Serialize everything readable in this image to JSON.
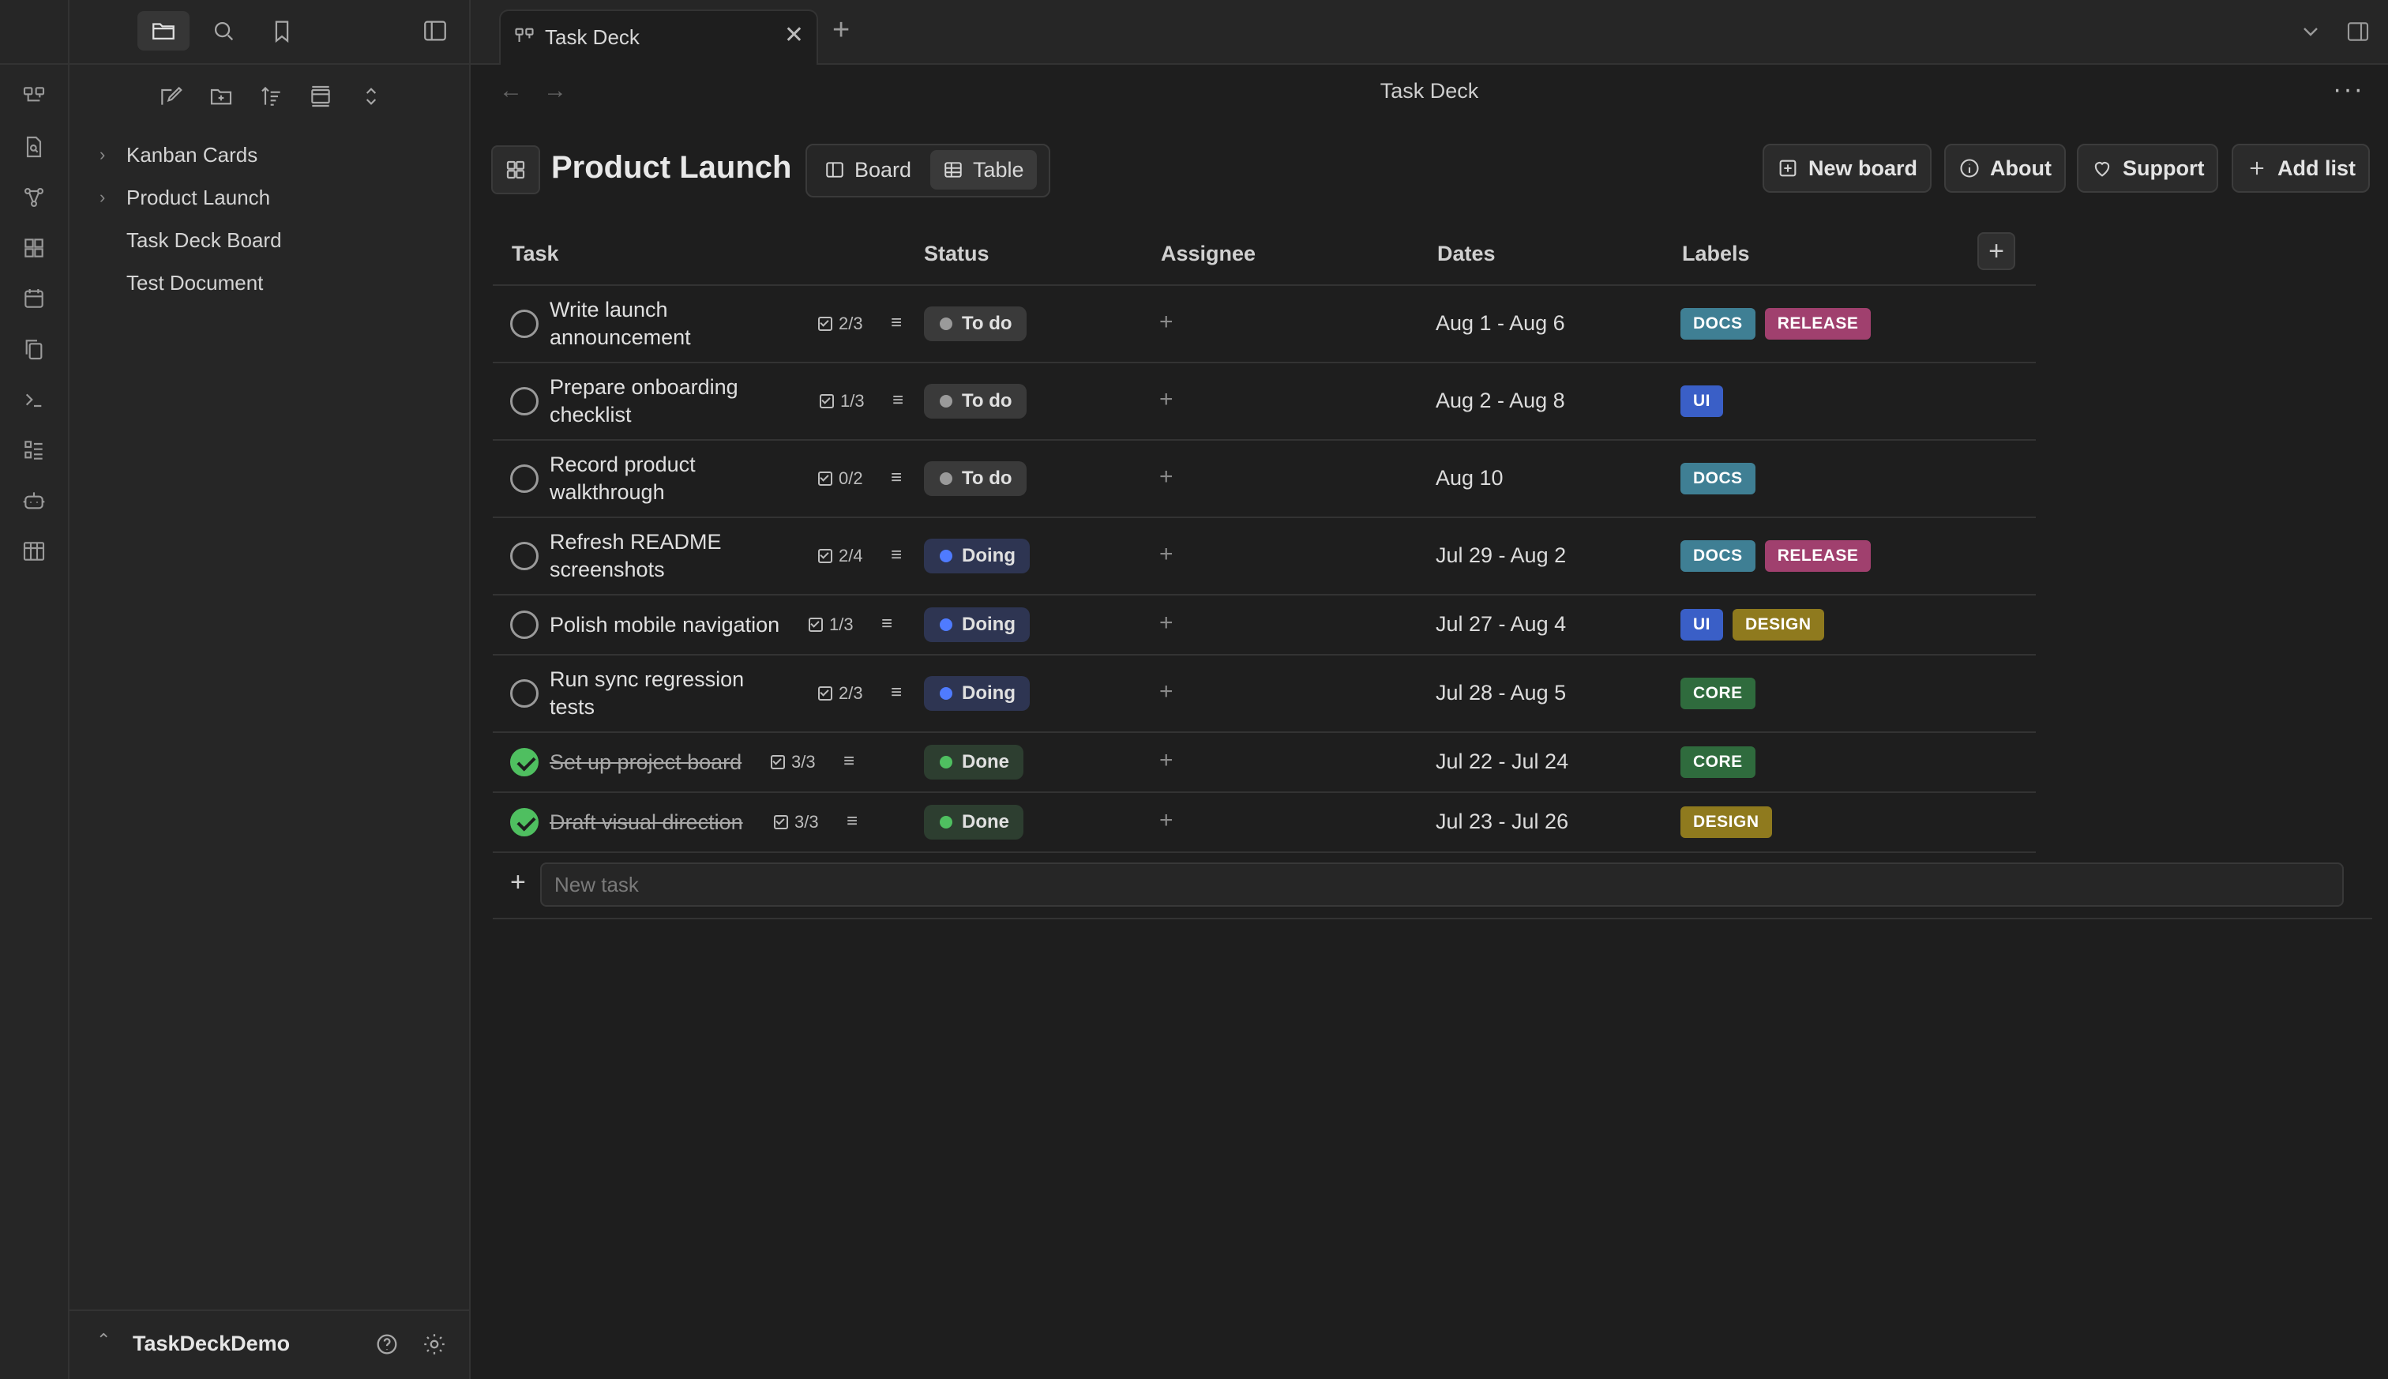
{
  "colors": {
    "app_bg": "#1e1e1e",
    "sidebar_bg": "#262626",
    "label_docs": "#3f7f94",
    "label_release": "#a0406e",
    "label_ui": "#3a5fc7",
    "label_design": "#8f7a1e",
    "label_core": "#2f6b3d",
    "status_todo": "#9a9a9a",
    "status_doing": "#4f7bff",
    "status_done": "#4fbf60",
    "check_done": "#4fbf60"
  },
  "ribbon": {
    "icons": [
      "kanban-icon",
      "search-file-icon",
      "graph-icon",
      "dashboard-icon",
      "calendar-icon",
      "copy-icon",
      "terminal-icon",
      "list-icon",
      "bot-icon",
      "board-icon"
    ]
  },
  "sidebar": {
    "tabs": [
      "folder-icon",
      "search-icon",
      "bookmark-icon"
    ],
    "tree": [
      {
        "label": "Kanban Cards",
        "folder": true
      },
      {
        "label": "Product Launch",
        "folder": true
      },
      {
        "label": "Task Deck Board",
        "folder": false
      },
      {
        "label": "Test Document",
        "folder": false
      }
    ],
    "vault_name": "TaskDeckDemo"
  },
  "tab": {
    "label": "Task Deck",
    "close": "✕",
    "add": "+"
  },
  "nav": {
    "title": "Task Deck",
    "back": "←",
    "forward": "→",
    "more": "···"
  },
  "board": {
    "title": "Product Launch",
    "view_board": "Board",
    "view_table": "Table",
    "new_board": "New board",
    "about": "About",
    "support": "Support",
    "add_list": "Add list"
  },
  "table": {
    "headers": {
      "task": "Task",
      "status": "Status",
      "assignee": "Assignee",
      "dates": "Dates",
      "labels": "Labels"
    },
    "add_column": "+",
    "rows": [
      {
        "name": "Write launch announcement",
        "name_lines": [
          "Write launch",
          "announcement"
        ],
        "subtasks": "2/3",
        "status": "To do",
        "status_key": "todo",
        "assignee": "+",
        "dates": "Aug 1 - Aug 6",
        "labels": [
          "DOCS",
          "RELEASE"
        ],
        "done": false
      },
      {
        "name": "Prepare onboarding checklist",
        "name_lines": [
          "Prepare onboarding",
          "checklist"
        ],
        "subtasks": "1/3",
        "status": "To do",
        "status_key": "todo",
        "assignee": "+",
        "dates": "Aug 2 - Aug 8",
        "labels": [
          "UI"
        ],
        "done": false
      },
      {
        "name": "Record product walkthrough",
        "name_lines": [
          "Record product",
          "walkthrough"
        ],
        "subtasks": "0/2",
        "status": "To do",
        "status_key": "todo",
        "assignee": "+",
        "dates": "Aug 10",
        "labels": [
          "DOCS"
        ],
        "done": false
      },
      {
        "name": "Refresh README screenshots",
        "name_lines": [
          "Refresh README",
          "screenshots"
        ],
        "subtasks": "2/4",
        "status": "Doing",
        "status_key": "doing",
        "assignee": "+",
        "dates": "Jul 29 - Aug 2",
        "labels": [
          "DOCS",
          "RELEASE"
        ],
        "done": false
      },
      {
        "name": "Polish mobile navigation",
        "name_lines": [
          "Polish mobile navigation"
        ],
        "subtasks": "1/3",
        "status": "Doing",
        "status_key": "doing",
        "assignee": "+",
        "dates": "Jul 27 - Aug 4",
        "labels": [
          "UI",
          "DESIGN"
        ],
        "done": false
      },
      {
        "name": "Run sync regression tests",
        "name_lines": [
          "Run sync regression",
          "tests"
        ],
        "subtasks": "2/3",
        "status": "Doing",
        "status_key": "doing",
        "assignee": "+",
        "dates": "Jul 28 - Aug 5",
        "labels": [
          "CORE"
        ],
        "done": false
      },
      {
        "name": "Set up project board",
        "name_lines": [
          "Set up project board"
        ],
        "subtasks": "3/3",
        "status": "Done",
        "status_key": "done",
        "assignee": "+",
        "dates": "Jul 22 - Jul 24",
        "labels": [
          "CORE"
        ],
        "done": true
      },
      {
        "name": "Draft visual direction",
        "name_lines": [
          "Draft visual direction"
        ],
        "subtasks": "3/3",
        "status": "Done",
        "status_key": "done",
        "assignee": "+",
        "dates": "Jul 23 - Jul 26",
        "labels": [
          "DESIGN"
        ],
        "done": true
      }
    ],
    "new_task_placeholder": "New task",
    "new_task_plus": "+"
  }
}
